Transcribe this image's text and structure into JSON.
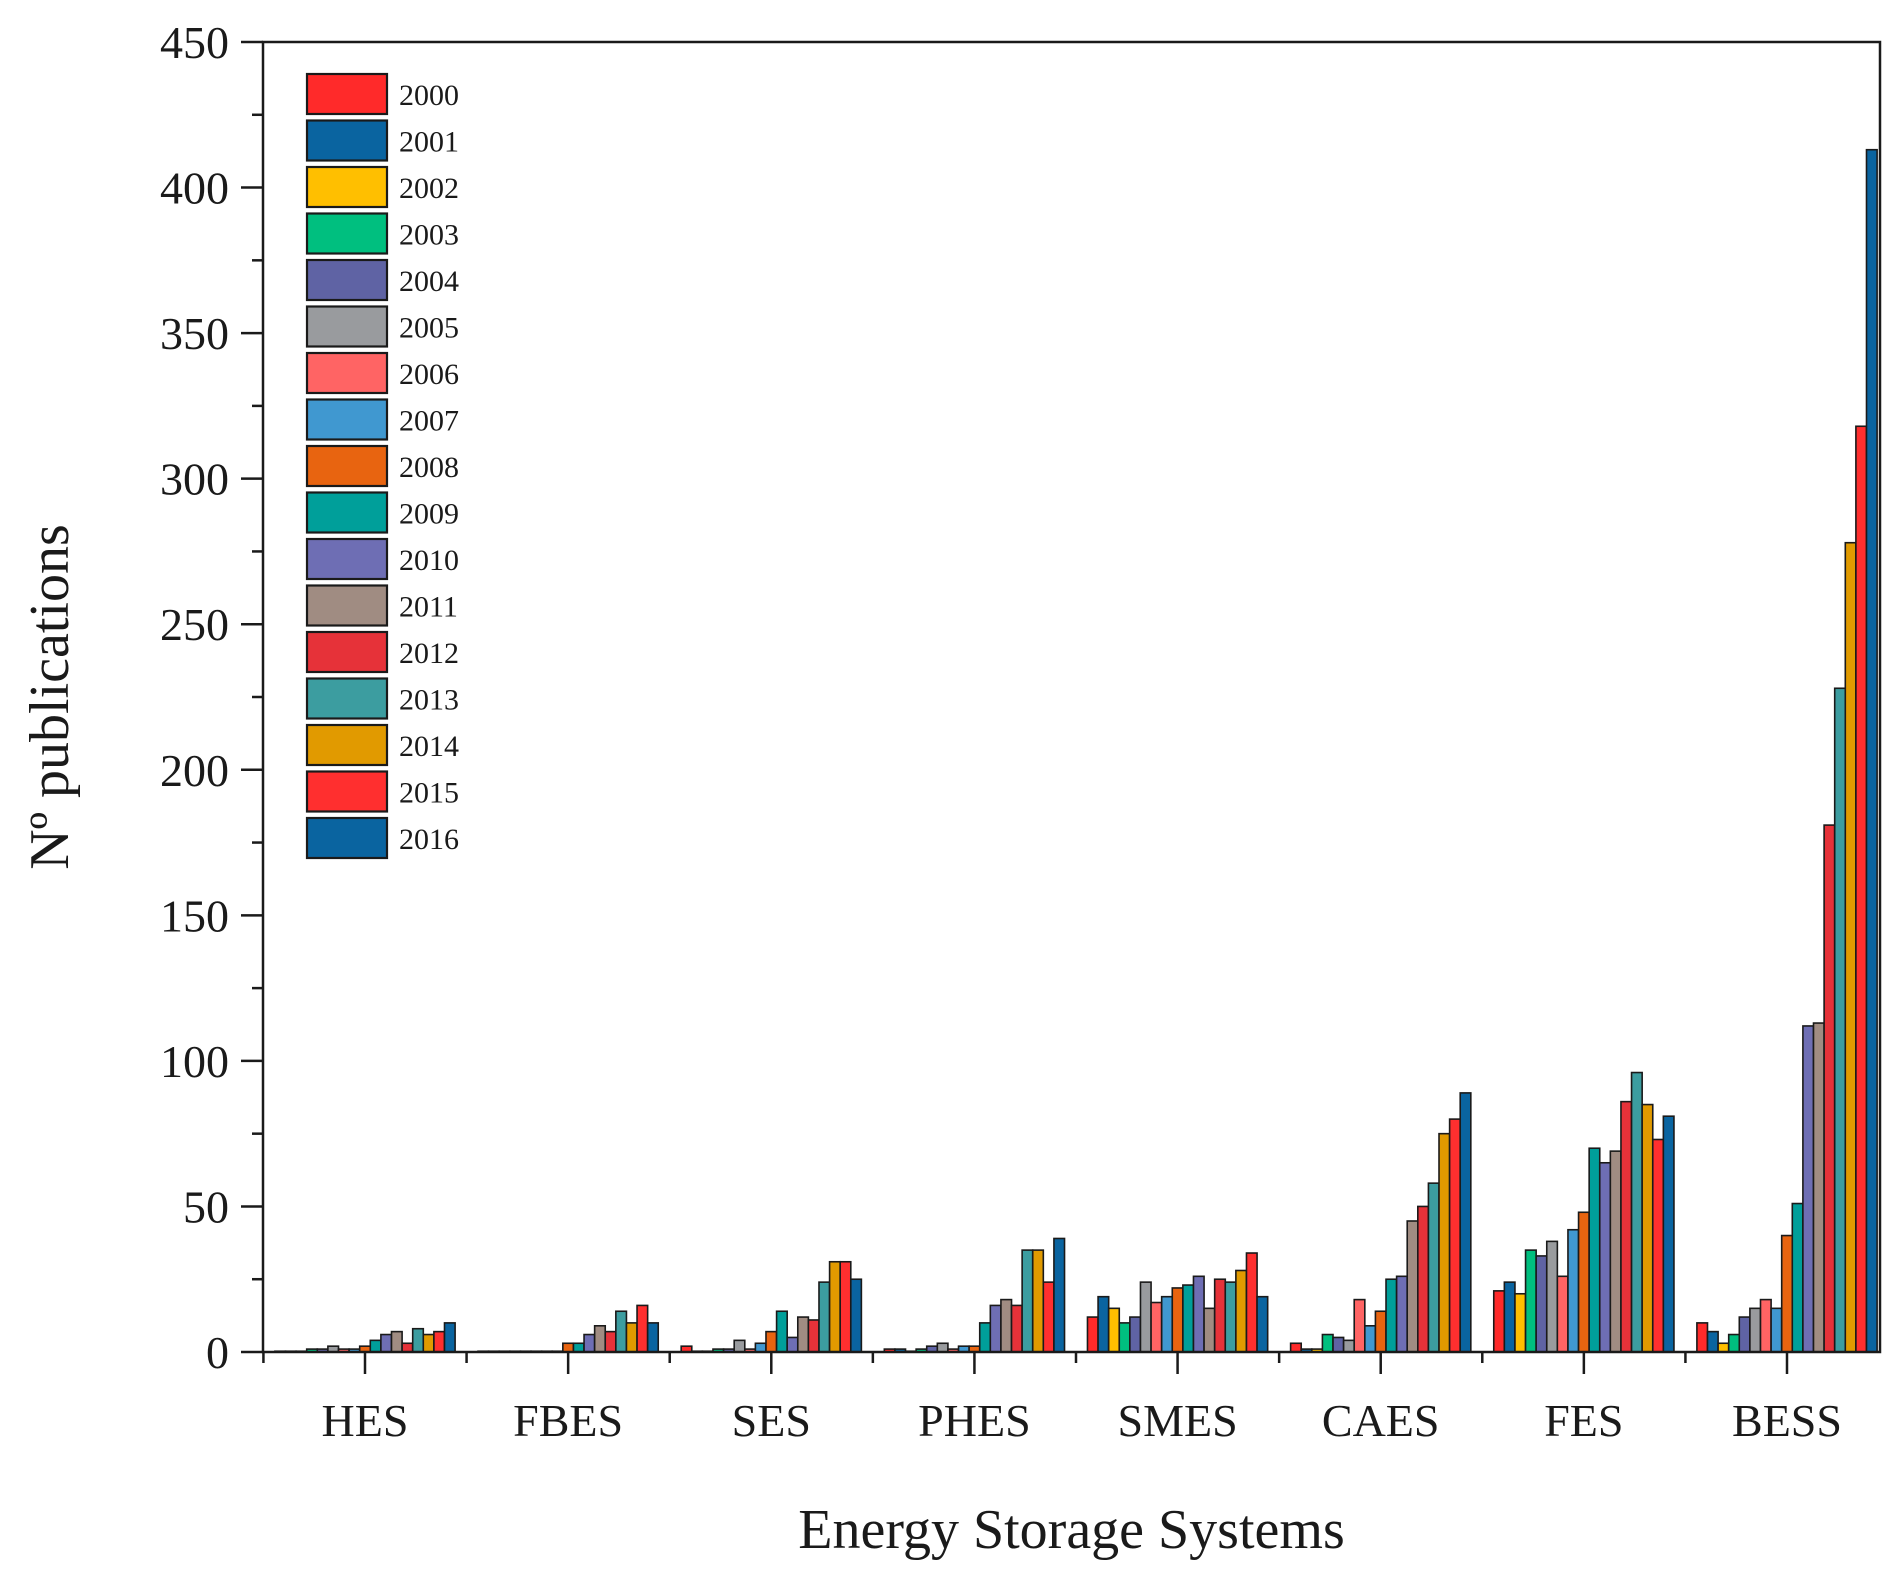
{
  "chart_data": {
    "type": "bar",
    "title": "",
    "xlabel": "Energy Storage Systems",
    "ylabel": "Nº publications",
    "ylim": [
      0,
      450
    ],
    "yticks": [
      0,
      50,
      100,
      150,
      200,
      250,
      300,
      350,
      400,
      450
    ],
    "grid": false,
    "legend_position": "top-left",
    "categories": [
      "HES",
      "FBES",
      "SES",
      "PHES",
      "SMES",
      "CAES",
      "FES",
      "BESS"
    ],
    "series": [
      {
        "name": "2000",
        "color": "#ff2a2a",
        "values": [
          0,
          0,
          2,
          1,
          12,
          3,
          21,
          10
        ]
      },
      {
        "name": "2001",
        "color": "#0a64a0",
        "values": [
          0,
          0,
          0,
          1,
          19,
          1,
          24,
          7
        ]
      },
      {
        "name": "2002",
        "color": "#ffbf00",
        "values": [
          0,
          0,
          0,
          0,
          15,
          1,
          20,
          3
        ]
      },
      {
        "name": "2003",
        "color": "#00bf7f",
        "values": [
          1,
          0,
          1,
          1,
          10,
          6,
          35,
          6
        ]
      },
      {
        "name": "2004",
        "color": "#5f63a4",
        "values": [
          1,
          0,
          1,
          2,
          12,
          5,
          33,
          12
        ]
      },
      {
        "name": "2005",
        "color": "#999b9e",
        "values": [
          2,
          0,
          4,
          3,
          24,
          4,
          38,
          15
        ]
      },
      {
        "name": "2006",
        "color": "#ff6464",
        "values": [
          1,
          0,
          1,
          1,
          17,
          18,
          26,
          18
        ]
      },
      {
        "name": "2007",
        "color": "#4098d0",
        "values": [
          1,
          0,
          3,
          2,
          19,
          9,
          42,
          15
        ]
      },
      {
        "name": "2008",
        "color": "#e86410",
        "values": [
          2,
          3,
          7,
          2,
          22,
          14,
          48,
          40
        ]
      },
      {
        "name": "2009",
        "color": "#009f9a",
        "values": [
          4,
          3,
          14,
          10,
          23,
          25,
          70,
          51
        ]
      },
      {
        "name": "2010",
        "color": "#6e6eb4",
        "values": [
          6,
          6,
          5,
          16,
          26,
          26,
          65,
          112
        ]
      },
      {
        "name": "2011",
        "color": "#a08c82",
        "values": [
          7,
          9,
          12,
          18,
          15,
          45,
          69,
          113
        ]
      },
      {
        "name": "2012",
        "color": "#e63239",
        "values": [
          3,
          7,
          11,
          16,
          25,
          50,
          86,
          181
        ]
      },
      {
        "name": "2013",
        "color": "#3c9da0",
        "values": [
          8,
          14,
          24,
          35,
          24,
          58,
          96,
          228
        ]
      },
      {
        "name": "2014",
        "color": "#e19a00",
        "values": [
          6,
          10,
          31,
          35,
          28,
          75,
          85,
          278
        ]
      },
      {
        "name": "2015",
        "color": "#ff2f2f",
        "values": [
          7,
          16,
          31,
          24,
          34,
          80,
          73,
          318
        ]
      },
      {
        "name": "2016",
        "color": "#0a64a0",
        "values": [
          10,
          10,
          25,
          39,
          19,
          89,
          81,
          413
        ]
      }
    ]
  }
}
